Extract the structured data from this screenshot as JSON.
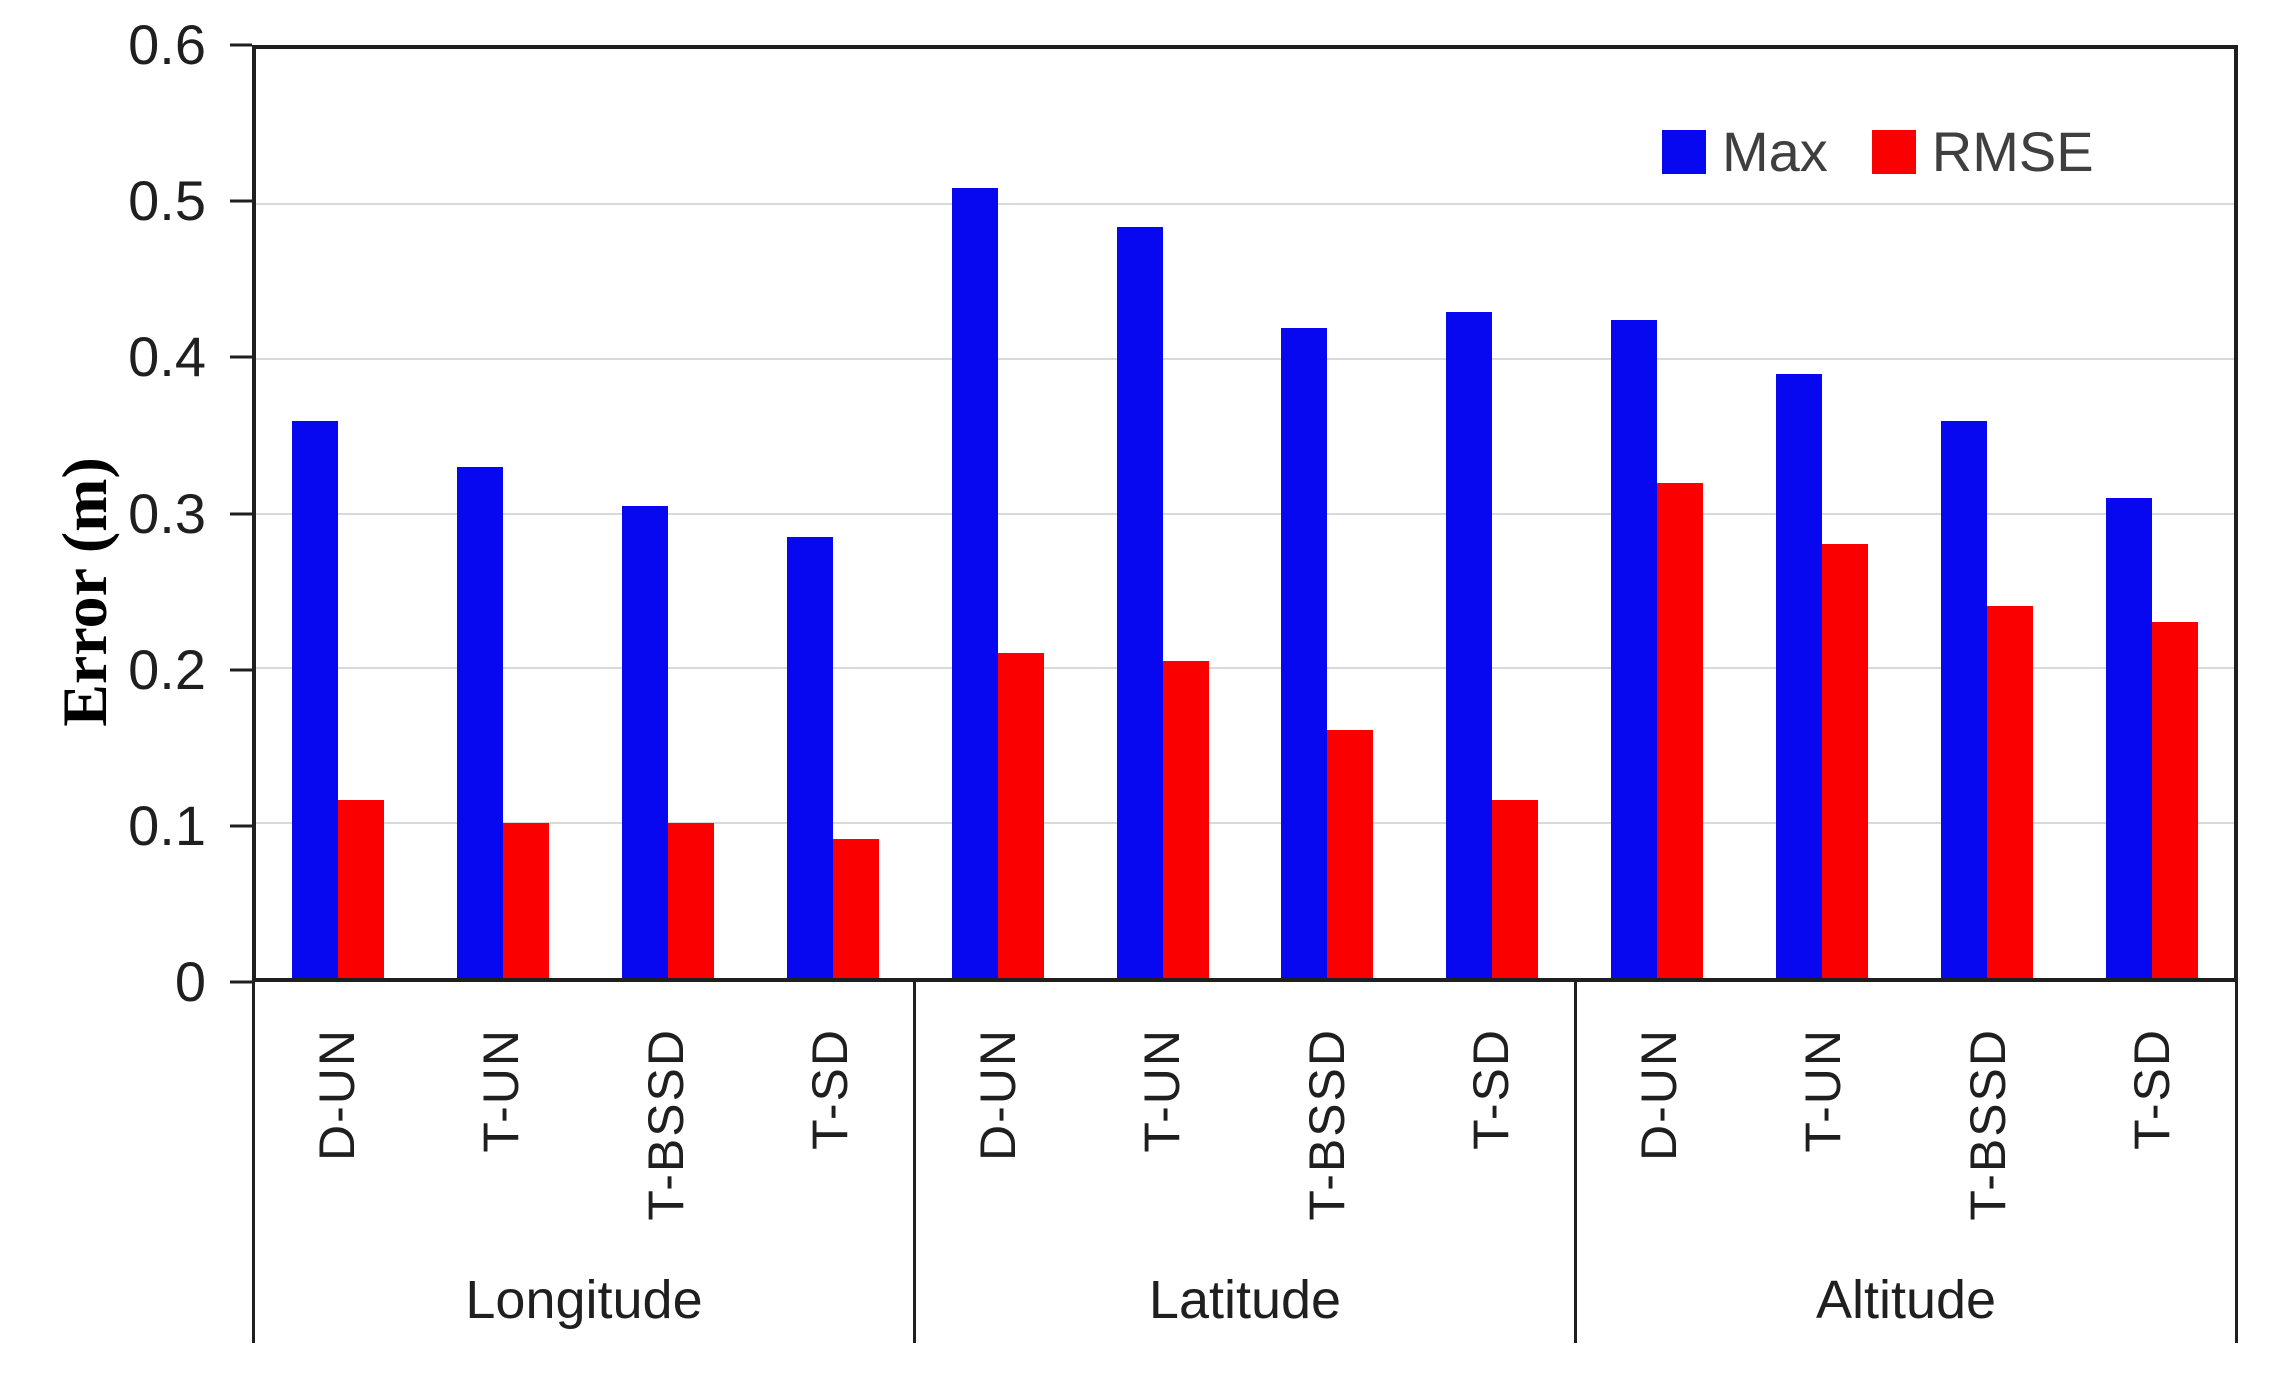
{
  "chart_data": {
    "type": "bar",
    "title": "",
    "ylabel": "Error (m)",
    "xlabel": "",
    "ylim": [
      0,
      0.6
    ],
    "yticks": [
      "0",
      "0.1",
      "0.2",
      "0.3",
      "0.4",
      "0.5",
      "0.6"
    ],
    "ytick_values": [
      0,
      0.1,
      0.2,
      0.3,
      0.4,
      0.5,
      0.6
    ],
    "grid": true,
    "legend_position": "top-right-inside",
    "groups": [
      "Longitude",
      "Latitude",
      "Altitude"
    ],
    "categories": [
      "D-UN",
      "T-UN",
      "T-BSSD",
      "T-SD"
    ],
    "series": [
      {
        "name": "Max",
        "color": "#0808f0",
        "values": [
          0.36,
          0.33,
          0.305,
          0.285,
          0.51,
          0.485,
          0.42,
          0.43,
          0.425,
          0.39,
          0.36,
          0.31
        ]
      },
      {
        "name": "RMSE",
        "color": "#fa0000",
        "values": [
          0.115,
          0.1,
          0.1,
          0.09,
          0.21,
          0.205,
          0.16,
          0.115,
          0.32,
          0.28,
          0.24,
          0.23
        ]
      }
    ],
    "colors": {
      "axis": "#1f1f1f",
      "grid": "#d9d9d9",
      "tick_text": "#1f1f1f",
      "legend_text": "#3f3f3f",
      "background": "#ffffff"
    }
  }
}
